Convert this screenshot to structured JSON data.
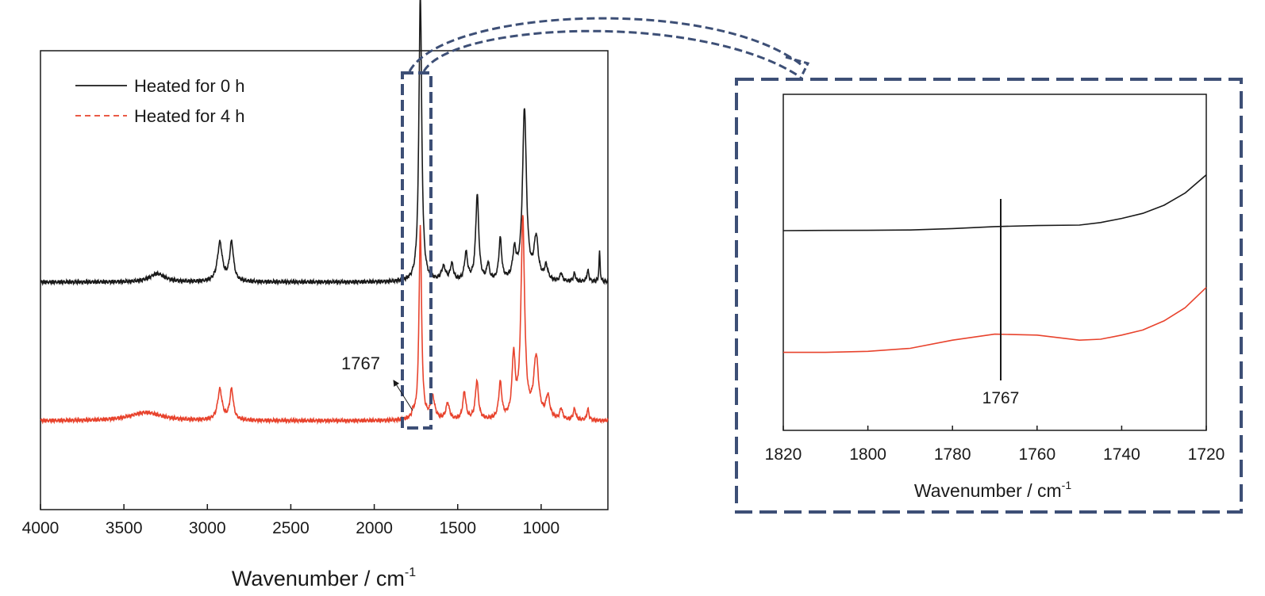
{
  "chart_data": [
    {
      "panel": "full-spectrum",
      "type": "line",
      "xlabel": "Wavenumber / cm",
      "xlabel_sup": "-1",
      "xlim": [
        4000,
        600
      ],
      "x_reversed": true,
      "xticks": [
        4000,
        3500,
        3000,
        2500,
        2000,
        1500,
        1000
      ],
      "y_ticks_shown": false,
      "legend_position": "top-left",
      "series": [
        {
          "name": "Heated for 0 h",
          "color": "#1a1a1a",
          "line_style": "solid",
          "baseline": 0.5,
          "peaks": [
            {
              "x": 3300,
              "height": 0.03,
              "width": 110
            },
            {
              "x": 2925,
              "height": 0.14,
              "width": 35
            },
            {
              "x": 2855,
              "height": 0.14,
              "width": 28
            },
            {
              "x": 1724,
              "height": 1.04,
              "width": 20
            },
            {
              "x": 1585,
              "height": 0.05,
              "width": 30
            },
            {
              "x": 1535,
              "height": 0.06,
              "width": 22
            },
            {
              "x": 1450,
              "height": 0.1,
              "width": 22
            },
            {
              "x": 1383,
              "height": 0.31,
              "width": 22
            },
            {
              "x": 1318,
              "height": 0.06,
              "width": 18
            },
            {
              "x": 1245,
              "height": 0.15,
              "width": 20
            },
            {
              "x": 1160,
              "height": 0.1,
              "width": 25
            },
            {
              "x": 1100,
              "height": 0.62,
              "width": 28
            },
            {
              "x": 1030,
              "height": 0.15,
              "width": 30
            },
            {
              "x": 970,
              "height": 0.05,
              "width": 25
            },
            {
              "x": 880,
              "height": 0.03,
              "width": 15
            },
            {
              "x": 800,
              "height": 0.03,
              "width": 15
            },
            {
              "x": 720,
              "height": 0.04,
              "width": 15
            },
            {
              "x": 650,
              "height": 0.11,
              "width": 8
            }
          ]
        },
        {
          "name": "Heated for 4 h",
          "color": "#e8432d",
          "line_style": "dashed",
          "baseline": 0.0,
          "peaks": [
            {
              "x": 3370,
              "height": 0.03,
              "width": 230
            },
            {
              "x": 2925,
              "height": 0.11,
              "width": 32
            },
            {
              "x": 2855,
              "height": 0.11,
              "width": 26
            },
            {
              "x": 1767,
              "height": 0.02,
              "width": 18
            },
            {
              "x": 1724,
              "height": 0.7,
              "width": 18
            },
            {
              "x": 1650,
              "height": 0.08,
              "width": 30
            },
            {
              "x": 1560,
              "height": 0.06,
              "width": 25
            },
            {
              "x": 1460,
              "height": 0.1,
              "width": 22
            },
            {
              "x": 1385,
              "height": 0.14,
              "width": 22
            },
            {
              "x": 1245,
              "height": 0.13,
              "width": 22
            },
            {
              "x": 1165,
              "height": 0.22,
              "width": 22
            },
            {
              "x": 1110,
              "height": 0.72,
              "width": 26
            },
            {
              "x": 1030,
              "height": 0.22,
              "width": 35
            },
            {
              "x": 960,
              "height": 0.08,
              "width": 28
            },
            {
              "x": 880,
              "height": 0.04,
              "width": 18
            },
            {
              "x": 800,
              "height": 0.04,
              "width": 18
            },
            {
              "x": 720,
              "height": 0.04,
              "width": 15
            }
          ]
        }
      ],
      "annotation": {
        "text": "1767",
        "x": 1767
      }
    },
    {
      "panel": "inset-zoom",
      "type": "line",
      "xlabel": "Wavenumber / cm",
      "xlabel_sup": "-1",
      "xlim": [
        1820,
        1720
      ],
      "x_reversed": true,
      "xticks": [
        1820,
        1800,
        1780,
        1760,
        1740,
        1720
      ],
      "y_ticks_shown": false,
      "series": [
        {
          "name": "Heated for 0 h",
          "color": "#1a1a1a",
          "points": [
            [
              1820,
              0.0
            ],
            [
              1810,
              0.002
            ],
            [
              1800,
              0.003
            ],
            [
              1790,
              0.006
            ],
            [
              1780,
              0.02
            ],
            [
              1770,
              0.04
            ],
            [
              1760,
              0.05
            ],
            [
              1750,
              0.055
            ],
            [
              1745,
              0.08
            ],
            [
              1740,
              0.12
            ],
            [
              1735,
              0.17
            ],
            [
              1730,
              0.25
            ],
            [
              1725,
              0.37
            ],
            [
              1720,
              0.55
            ]
          ]
        },
        {
          "name": "Heated for 4 h",
          "color": "#e8432d",
          "points": [
            [
              1820,
              -1.2
            ],
            [
              1810,
              -1.2
            ],
            [
              1800,
              -1.19
            ],
            [
              1790,
              -1.16
            ],
            [
              1780,
              -1.08
            ],
            [
              1770,
              -1.02
            ],
            [
              1760,
              -1.03
            ],
            [
              1750,
              -1.08
            ],
            [
              1745,
              -1.07
            ],
            [
              1740,
              -1.03
            ],
            [
              1735,
              -0.98
            ],
            [
              1730,
              -0.89
            ],
            [
              1725,
              -0.76
            ],
            [
              1720,
              -0.56
            ]
          ]
        }
      ],
      "annotation": {
        "text": "1767",
        "x": 1769
      }
    }
  ]
}
